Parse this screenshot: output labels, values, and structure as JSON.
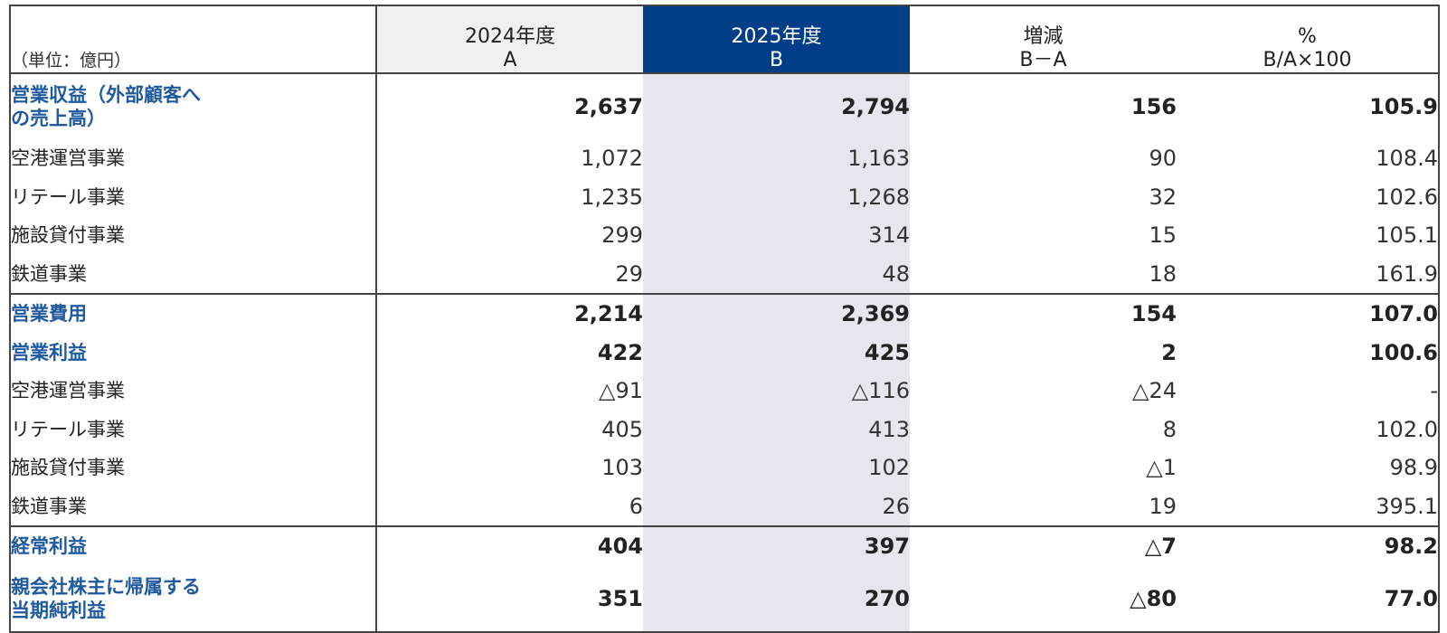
{
  "table": {
    "header": {
      "unit": "（単位：億円）",
      "columns": [
        {
          "line1": "2024年度",
          "line2": "A"
        },
        {
          "line1": "2025年度",
          "line2": "B"
        },
        {
          "line1": "増減",
          "line2": "B－A"
        },
        {
          "line1": "%",
          "line2": "B/A×100"
        }
      ]
    },
    "sections": [
      {
        "items": [
          {
            "label": "営業収益（外部顧客への売上高）",
            "values": [
              "2,637",
              "2,794",
              "156",
              "105.9"
            ],
            "segments": [
              {
                "label": "空港運営事業",
                "values": [
                  "1,072",
                  "1,163",
                  "90",
                  "108.4"
                ]
              },
              {
                "label": "リテール事業",
                "values": [
                  "1,235",
                  "1,268",
                  "32",
                  "102.6"
                ]
              },
              {
                "label": "施設貸付事業",
                "values": [
                  "299",
                  "314",
                  "15",
                  "105.1"
                ]
              },
              {
                "label": "鉄道事業",
                "values": [
                  "29",
                  "48",
                  "18",
                  "161.9"
                ]
              }
            ]
          }
        ]
      },
      {
        "items": [
          {
            "label": "営業費用",
            "values": [
              "2,214",
              "2,369",
              "154",
              "107.0"
            ]
          },
          {
            "label": "営業利益",
            "values": [
              "422",
              "425",
              "2",
              "100.6"
            ],
            "segments": [
              {
                "label": "空港運営事業",
                "values": [
                  "△91",
                  "△116",
                  "△24",
                  "-"
                ]
              },
              {
                "label": "リテール事業",
                "values": [
                  "405",
                  "413",
                  "8",
                  "102.0"
                ]
              },
              {
                "label": "施設貸付事業",
                "values": [
                  "103",
                  "102",
                  "△1",
                  "98.9"
                ]
              },
              {
                "label": "鉄道事業",
                "values": [
                  "6",
                  "26",
                  "19",
                  "395.1"
                ]
              }
            ]
          }
        ]
      },
      {
        "items": [
          {
            "label": "経常利益",
            "values": [
              "404",
              "397",
              "△7",
              "98.2"
            ]
          },
          {
            "label": "親会社株主に帰属する当期純利益",
            "values": [
              "351",
              "270",
              "△80",
              "77.0"
            ]
          }
        ]
      }
    ]
  }
}
